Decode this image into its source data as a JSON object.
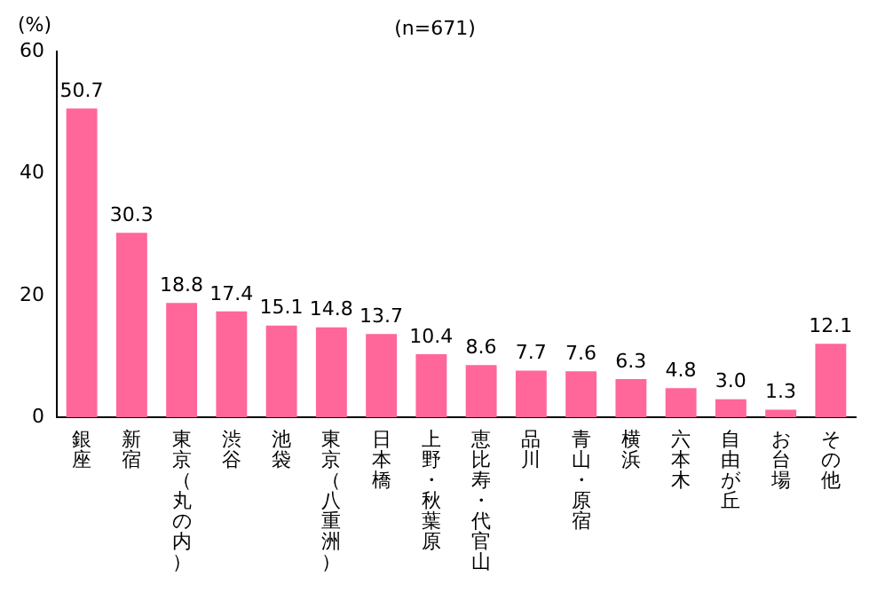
{
  "chart_data": {
    "type": "bar",
    "title": "(n=671)",
    "ylabel": "(%)",
    "categories": [
      "銀座",
      "新宿",
      "東京（丸の内）",
      "渋谷",
      "池袋",
      "東京（八重洲）",
      "日本橋",
      "上野・秋葉原",
      "恵比寿・代官山",
      "品川",
      "青山・原宿",
      "横浜",
      "六本木",
      "自由が丘",
      "お台場",
      "その他"
    ],
    "values": [
      50.7,
      30.3,
      18.8,
      17.4,
      15.1,
      14.8,
      13.7,
      10.4,
      8.6,
      7.7,
      7.6,
      6.3,
      4.8,
      3.0,
      1.3,
      12.1
    ],
    "value_labels": [
      "50.7",
      "30.3",
      "18.8",
      "17.4",
      "15.1",
      "14.8",
      "13.7",
      "10.4",
      "8.6",
      "7.7",
      "7.6",
      "6.3",
      "4.8",
      "3.0",
      "1.3",
      "12.1"
    ],
    "color": "#ff6699",
    "ylim": [
      0,
      60
    ],
    "yticks": [
      0,
      20,
      40,
      60
    ],
    "grid": false
  }
}
